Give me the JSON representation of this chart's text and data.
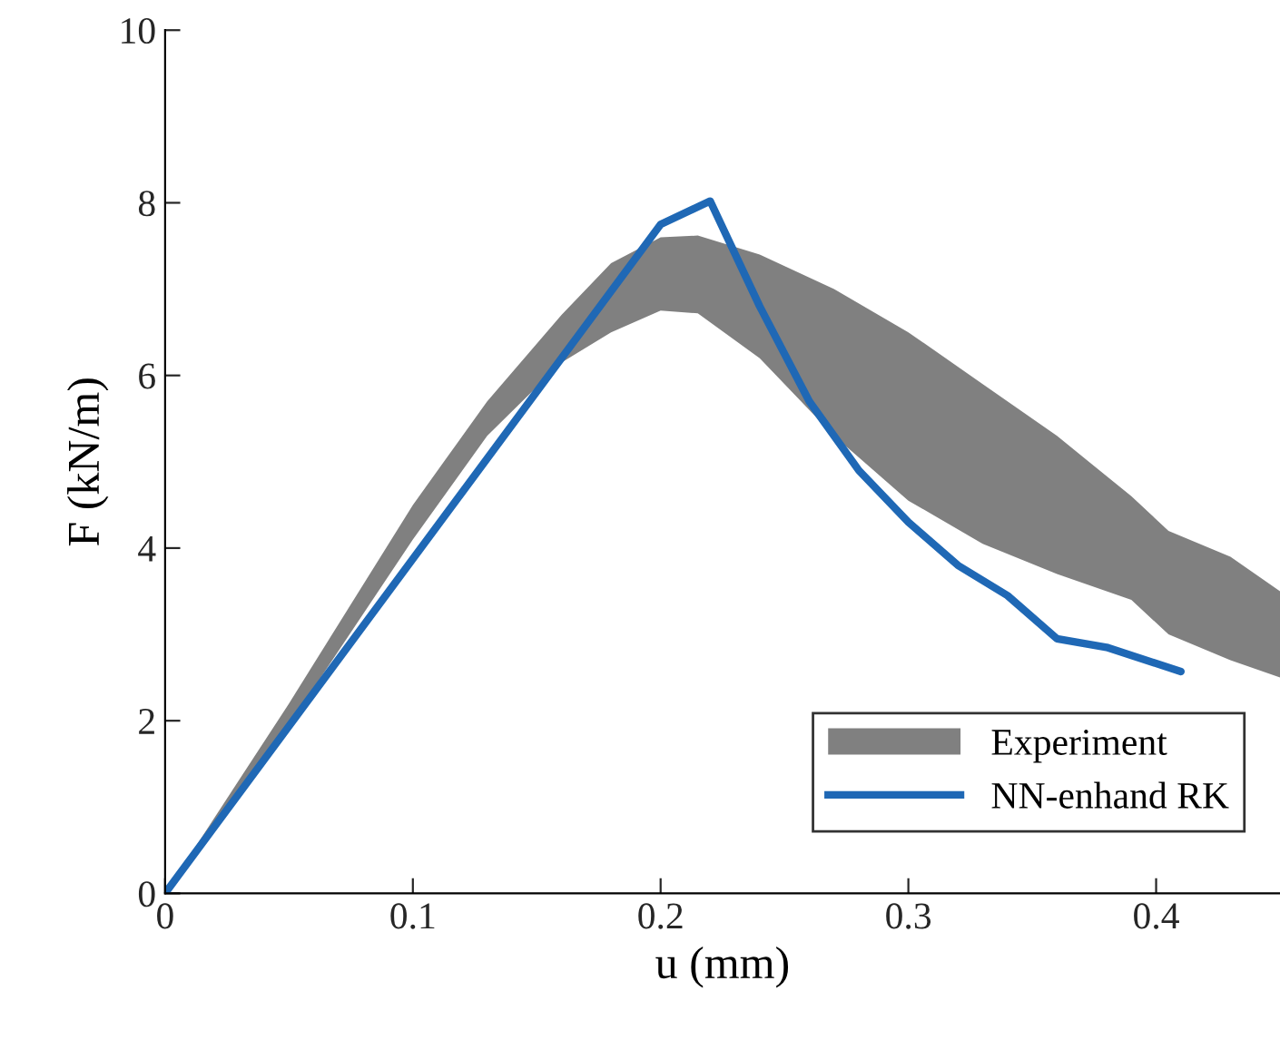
{
  "chart_data": {
    "type": "line",
    "xlabel": "u (mm)",
    "ylabel": "F (kN/m)",
    "xlim": [
      0,
      0.45
    ],
    "ylim": [
      0,
      10
    ],
    "xticks": [
      0,
      0.1,
      0.2,
      0.3,
      0.4
    ],
    "yticks": [
      0,
      2,
      4,
      6,
      8,
      10
    ],
    "grid": false,
    "legend": "bottom right",
    "series": [
      {
        "name": "Experiment",
        "type": "area",
        "color": "#808080",
        "x": [
          0,
          0.05,
          0.1,
          0.13,
          0.16,
          0.18,
          0.2,
          0.215,
          0.24,
          0.27,
          0.3,
          0.33,
          0.36,
          0.39,
          0.405,
          0.43,
          0.45
        ],
        "values": [
          null,
          null,
          null,
          null,
          null,
          null,
          null,
          null,
          null,
          null,
          null,
          null,
          null,
          null,
          null,
          null,
          null
        ],
        "upper": [
          0,
          2.2,
          4.5,
          5.7,
          6.7,
          7.3,
          7.6,
          7.62,
          7.4,
          7.0,
          6.5,
          5.9,
          5.3,
          4.6,
          4.2,
          3.9,
          3.5
        ],
        "lower": [
          0,
          1.95,
          4.1,
          5.3,
          6.15,
          6.5,
          6.75,
          6.72,
          6.2,
          5.3,
          4.55,
          4.05,
          3.7,
          3.4,
          3.0,
          2.7,
          2.5
        ]
      },
      {
        "name": "NN-enhand RK",
        "color": "#1f68b5",
        "x": [
          0,
          0.2,
          0.22,
          0.24,
          0.26,
          0.28,
          0.3,
          0.32,
          0.34,
          0.36,
          0.38,
          0.41
        ],
        "values": [
          0,
          7.75,
          8.02,
          6.8,
          5.7,
          4.9,
          4.3,
          3.8,
          3.45,
          2.95,
          2.85,
          2.57
        ]
      }
    ]
  }
}
